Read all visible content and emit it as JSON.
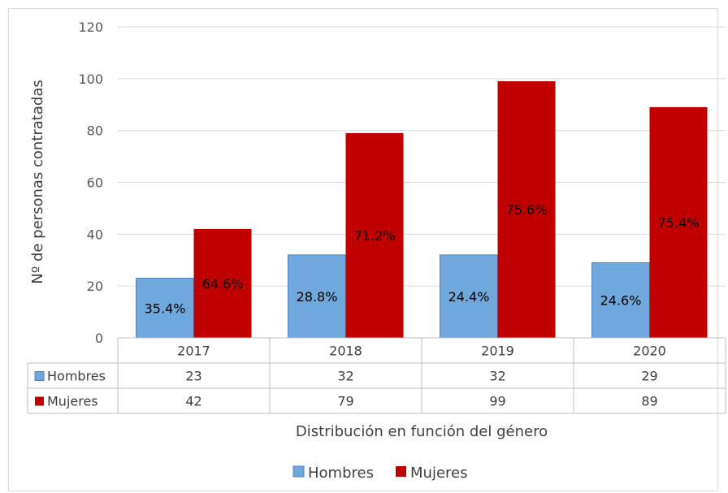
{
  "chart_data": {
    "type": "bar",
    "categories": [
      "2017",
      "2018",
      "2019",
      "2020"
    ],
    "series": [
      {
        "name": "Hombres",
        "values": [
          23,
          32,
          32,
          29
        ],
        "labels": [
          "35.4%",
          "28.8%",
          "24.4%",
          "24.6%"
        ],
        "color": "#6fa8dc"
      },
      {
        "name": "Mujeres",
        "values": [
          42,
          79,
          99,
          89
        ],
        "labels": [
          "64.6%",
          "71.2%",
          "75.6%",
          "75.4%"
        ],
        "color": "#c00000"
      }
    ],
    "xlabel": "Distribución en función del género",
    "ylabel": "Nº de personas contratadas",
    "ylim": [
      0,
      120
    ],
    "yticks": [
      0,
      20,
      40,
      60,
      80,
      100,
      120
    ],
    "grid": true,
    "legend": "bottom",
    "data_table": true
  }
}
